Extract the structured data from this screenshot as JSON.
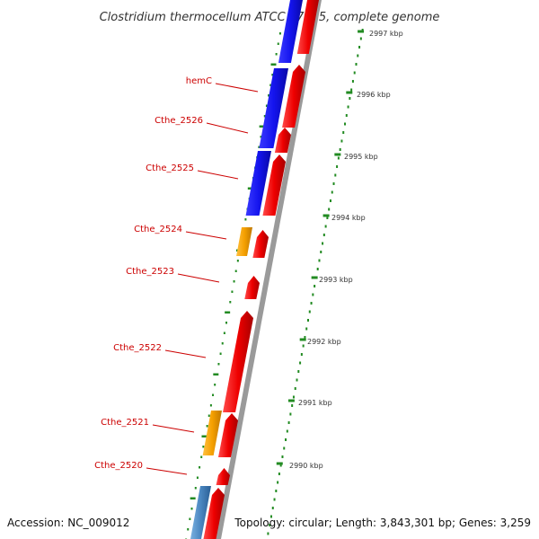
{
  "title": "Clostridium thermocellum ATCC 27405, complete genome",
  "footer": {
    "accession": "Accession: NC_009012",
    "topology": "Topology: circular; Length: 3,843,301 bp; Genes: 3,259"
  },
  "colors": {
    "forward_gene": "#ee0000",
    "reverse_gene_blue": "#1010ee",
    "reverse_gene_orange": "#f5a000",
    "reverse_gene_steel": "#4a86c0",
    "tick": "#228b22",
    "label": "#cc0000",
    "backbone": "#9a9a9a"
  },
  "scale_labels": [
    "2997 kbp",
    "2996 kbp",
    "2995 kbp",
    "2994 kbp",
    "2993 kbp",
    "2992 kbp",
    "2991 kbp",
    "2990 kbp"
  ],
  "gene_labels": [
    "hemC",
    "Cthe_2526",
    "Cthe_2525",
    "Cthe_2524",
    "Cthe_2523",
    "Cthe_2522",
    "Cthe_2521",
    "Cthe_2520"
  ]
}
